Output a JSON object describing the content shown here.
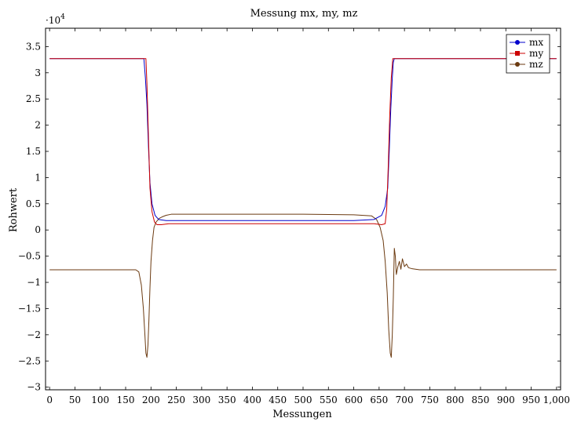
{
  "chart_data": {
    "type": "line",
    "title": "Messung mx, my, mz",
    "xlabel": "Messungen",
    "ylabel": "Rohwert",
    "y_multiplier": "·10",
    "y_multiplier_exponent": "4",
    "xlim": [
      -8,
      1008
    ],
    "ylim": [
      -3.05,
      3.85
    ],
    "x_ticks": [
      0,
      50,
      100,
      150,
      200,
      250,
      300,
      350,
      400,
      450,
      500,
      550,
      600,
      650,
      700,
      750,
      800,
      850,
      900,
      950,
      1000
    ],
    "x_tick_labels": [
      "0",
      "50",
      "100",
      "150",
      "200",
      "250",
      "300",
      "350",
      "400",
      "450",
      "500",
      "550",
      "600",
      "650",
      "700",
      "750",
      "800",
      "850",
      "900",
      "950",
      "1,000"
    ],
    "y_ticks": [
      -3,
      -2.5,
      -2,
      -1.5,
      -1,
      -0.5,
      0,
      0.5,
      1,
      1.5,
      2,
      2.5,
      3,
      3.5
    ],
    "y_tick_labels": [
      "−3",
      "−2.5",
      "−2",
      "−1.5",
      "−1",
      "−0.5",
      "0",
      "0.5",
      "1",
      "1.5",
      "2",
      "2.5",
      "3",
      "3.5"
    ],
    "legend": "top-right",
    "grid": false,
    "series": [
      {
        "name": "mx",
        "color": "#0000cc",
        "marker": "circle",
        "points": [
          [
            0,
            3.27
          ],
          [
            186,
            3.27
          ],
          [
            189,
            2.9
          ],
          [
            192,
            2.4
          ],
          [
            195,
            1.6
          ],
          [
            198,
            0.9
          ],
          [
            202,
            0.5
          ],
          [
            208,
            0.28
          ],
          [
            215,
            0.2
          ],
          [
            230,
            0.18
          ],
          [
            300,
            0.18
          ],
          [
            400,
            0.18
          ],
          [
            500,
            0.18
          ],
          [
            600,
            0.18
          ],
          [
            640,
            0.2
          ],
          [
            655,
            0.28
          ],
          [
            662,
            0.45
          ],
          [
            667,
            0.8
          ],
          [
            670,
            1.5
          ],
          [
            673,
            2.3
          ],
          [
            676,
            2.9
          ],
          [
            678,
            3.2
          ],
          [
            680,
            3.27
          ],
          [
            1000,
            3.27
          ]
        ]
      },
      {
        "name": "my",
        "color": "#cc0000",
        "marker": "square",
        "points": [
          [
            0,
            3.27
          ],
          [
            190,
            3.27
          ],
          [
            192,
            2.8
          ],
          [
            195,
            1.8
          ],
          [
            198,
            0.8
          ],
          [
            202,
            0.35
          ],
          [
            207,
            0.15
          ],
          [
            212,
            0.1
          ],
          [
            220,
            0.1
          ],
          [
            235,
            0.12
          ],
          [
            300,
            0.12
          ],
          [
            400,
            0.12
          ],
          [
            500,
            0.12
          ],
          [
            600,
            0.12
          ],
          [
            640,
            0.12
          ],
          [
            655,
            0.1
          ],
          [
            662,
            0.12
          ],
          [
            665,
            0.4
          ],
          [
            668,
            1.2
          ],
          [
            671,
            2.2
          ],
          [
            674,
            2.9
          ],
          [
            677,
            3.27
          ],
          [
            1000,
            3.27
          ]
        ]
      },
      {
        "name": "mz",
        "color": "#6b3a10",
        "marker": "circle",
        "points": [
          [
            0,
            -0.76
          ],
          [
            170,
            -0.76
          ],
          [
            176,
            -0.8
          ],
          [
            181,
            -1.05
          ],
          [
            185,
            -1.5
          ],
          [
            188,
            -2.0
          ],
          [
            190,
            -2.35
          ],
          [
            192,
            -2.43
          ],
          [
            194,
            -2.2
          ],
          [
            196,
            -1.7
          ],
          [
            198,
            -1.1
          ],
          [
            200,
            -0.6
          ],
          [
            203,
            -0.2
          ],
          [
            206,
            0.05
          ],
          [
            210,
            0.15
          ],
          [
            216,
            0.22
          ],
          [
            222,
            0.25
          ],
          [
            230,
            0.28
          ],
          [
            240,
            0.3
          ],
          [
            300,
            0.3
          ],
          [
            400,
            0.3
          ],
          [
            500,
            0.3
          ],
          [
            600,
            0.29
          ],
          [
            635,
            0.27
          ],
          [
            645,
            0.2
          ],
          [
            652,
            0.05
          ],
          [
            658,
            -0.2
          ],
          [
            662,
            -0.6
          ],
          [
            666,
            -1.2
          ],
          [
            669,
            -1.9
          ],
          [
            672,
            -2.35
          ],
          [
            674,
            -2.43
          ],
          [
            676,
            -2.0
          ],
          [
            678,
            -1.3
          ],
          [
            680,
            -0.35
          ],
          [
            682,
            -0.5
          ],
          [
            684,
            -0.85
          ],
          [
            687,
            -0.7
          ],
          [
            690,
            -0.6
          ],
          [
            693,
            -0.75
          ],
          [
            696,
            -0.55
          ],
          [
            700,
            -0.7
          ],
          [
            704,
            -0.65
          ],
          [
            708,
            -0.72
          ],
          [
            715,
            -0.74
          ],
          [
            730,
            -0.76
          ],
          [
            800,
            -0.76
          ],
          [
            900,
            -0.76
          ],
          [
            1000,
            -0.76
          ]
        ]
      }
    ]
  }
}
